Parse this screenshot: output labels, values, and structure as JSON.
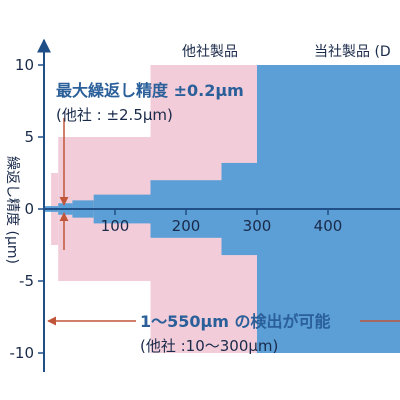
{
  "chart_data": {
    "type": "area",
    "xlim": [
      -10,
      560
    ],
    "ylim": [
      -11,
      11
    ],
    "x_ticks": [
      "100",
      "200",
      "300",
      "400"
    ],
    "y_ticks": [
      "10",
      "5",
      "0",
      "-5",
      "-10"
    ],
    "ylabel": "繰返し精度 (μm)",
    "series": [
      {
        "name": "他社製品",
        "color": "#f2cdd9",
        "segments": [
          {
            "x0": 10,
            "x1": 20,
            "half_width": 2.5
          },
          {
            "x0": 20,
            "x1": 150,
            "half_width": 5
          },
          {
            "x0": 150,
            "x1": 300,
            "half_width": 10
          }
        ]
      },
      {
        "name": "当社製品",
        "color": "#5b9fd6",
        "segments": [
          {
            "x0": 1,
            "x1": 20,
            "half_width": 0.2
          },
          {
            "x0": 20,
            "x1": 40,
            "half_width": 0.4
          },
          {
            "x0": 40,
            "x1": 70,
            "half_width": 0.6
          },
          {
            "x0": 70,
            "x1": 150,
            "half_width": 1
          },
          {
            "x0": 150,
            "x1": 250,
            "half_width": 2
          },
          {
            "x0": 250,
            "x1": 300,
            "half_width": 3.2
          },
          {
            "x0": 300,
            "x1": 550,
            "half_width": 10
          }
        ]
      }
    ],
    "series_labels": {
      "competitor": "他社製品",
      "ours": "当社製品 (D"
    },
    "annotations": {
      "repeat_title": "最大繰返し精度 ±0.2μm",
      "repeat_sub": "(他社 : ±2.5μm)",
      "range_title": "1〜550μm の検出が可能",
      "range_sub": "(他社 :10〜300μm)"
    }
  }
}
